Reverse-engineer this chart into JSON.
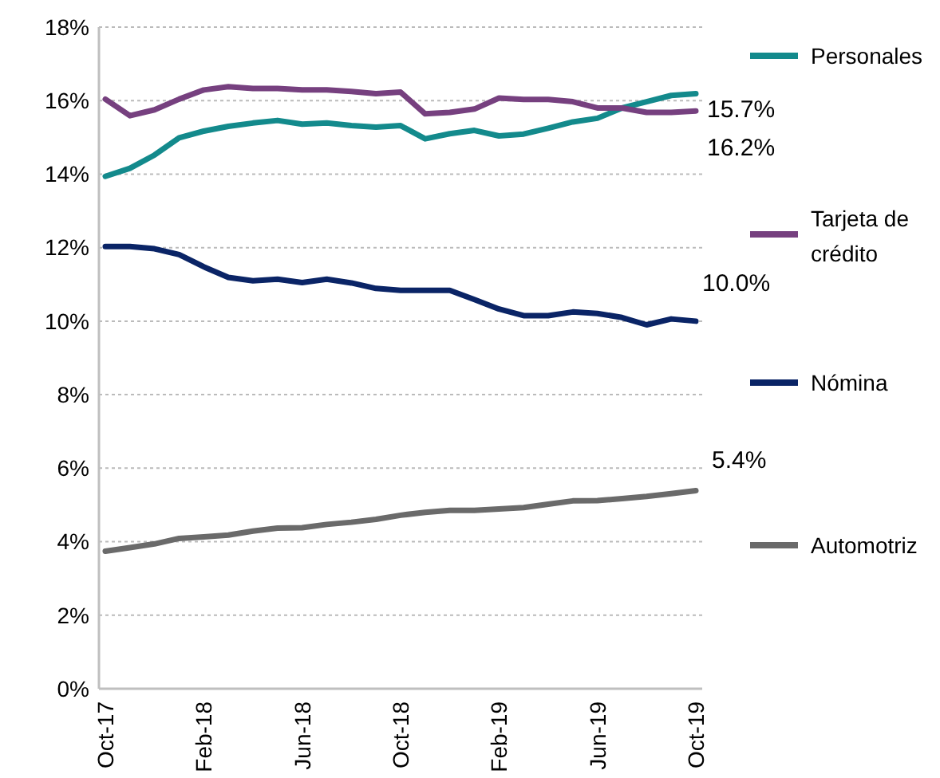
{
  "chart_data": {
    "type": "line",
    "categories": [
      "Oct-17",
      null,
      null,
      null,
      "Feb-18",
      null,
      null,
      null,
      "Jun-18",
      null,
      null,
      null,
      "Oct-18",
      null,
      null,
      null,
      "Feb-19",
      null,
      null,
      null,
      "Jun-19",
      null,
      null,
      null,
      "Oct-19"
    ],
    "series": [
      {
        "name": "Personales",
        "color": "#138a8c",
        "values": [
          13.94,
          14.16,
          14.52,
          14.99,
          15.17,
          15.3,
          15.39,
          15.46,
          15.36,
          15.39,
          15.32,
          15.28,
          15.32,
          14.96,
          15.1,
          15.19,
          15.04,
          15.09,
          15.25,
          15.42,
          15.52,
          15.8,
          15.97,
          16.14,
          16.19
        ]
      },
      {
        "name": "Tarjeta de crédito",
        "color": "#76407f",
        "values": [
          16.04,
          15.59,
          15.75,
          16.04,
          16.29,
          16.38,
          16.33,
          16.33,
          16.29,
          16.29,
          16.25,
          16.19,
          16.23,
          15.64,
          15.68,
          15.77,
          16.07,
          16.03,
          16.03,
          15.97,
          15.8,
          15.8,
          15.68,
          15.68,
          15.72
        ]
      },
      {
        "name": "Nómina",
        "color": "#0a2466",
        "values": [
          12.03,
          12.03,
          11.97,
          11.81,
          11.48,
          11.19,
          11.1,
          11.14,
          11.05,
          11.14,
          11.04,
          10.89,
          10.84,
          10.84,
          10.84,
          10.59,
          10.33,
          10.15,
          10.15,
          10.25,
          10.21,
          10.1,
          9.9,
          10.06,
          10.0
        ]
      },
      {
        "name": "Automotriz",
        "color": "#6a6a6a",
        "values": [
          3.74,
          3.84,
          3.94,
          4.09,
          4.13,
          4.18,
          4.29,
          4.37,
          4.38,
          4.47,
          4.53,
          4.61,
          4.72,
          4.8,
          4.85,
          4.85,
          4.89,
          4.93,
          5.02,
          5.11,
          5.12,
          5.17,
          5.23,
          5.31,
          5.39
        ]
      }
    ],
    "ylim": [
      0,
      18
    ],
    "yticks": [
      {
        "value": 0,
        "label": "0%"
      },
      {
        "value": 2,
        "label": "2%"
      },
      {
        "value": 4,
        "label": "4%"
      },
      {
        "value": 6,
        "label": "6%"
      },
      {
        "value": 8,
        "label": "8%"
      },
      {
        "value": 10,
        "label": "10%"
      },
      {
        "value": 12,
        "label": "12%"
      },
      {
        "value": 14,
        "label": "14%"
      },
      {
        "value": 16,
        "label": "16%"
      },
      {
        "value": 18,
        "label": "18%"
      }
    ],
    "grid": "y",
    "legend": "right",
    "line_style": "solid",
    "annotations": [
      "15.7%",
      "16.2%",
      "10.0%",
      "5.4%"
    ]
  }
}
